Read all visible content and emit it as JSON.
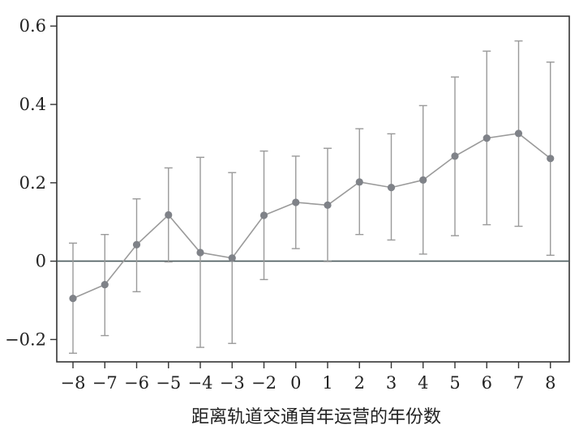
{
  "chart_data": {
    "type": "line",
    "title": "",
    "xlabel": "距离轨道交通首年运营的年份数",
    "ylabel": "",
    "x": [
      -8,
      -7,
      -6,
      -5,
      -4,
      -3,
      -2,
      0,
      1,
      2,
      3,
      4,
      5,
      6,
      7,
      8
    ],
    "x_tick_labels": [
      "−8",
      "−7",
      "−6",
      "−5",
      "−4",
      "−3",
      "−2",
      "0",
      "1",
      "2",
      "3",
      "4",
      "5",
      "6",
      "7",
      "8"
    ],
    "y_ticks": [
      -0.2,
      0,
      0.2,
      0.4,
      0.6
    ],
    "y_tick_labels": [
      "−0.2",
      "0",
      "0.2",
      "0.4",
      "0.6"
    ],
    "ylim": [
      -0.26,
      0.63
    ],
    "series": [
      {
        "values": [
          -0.095,
          -0.06,
          0.042,
          0.118,
          0.022,
          0.008,
          0.117,
          0.15,
          0.143,
          0.202,
          0.188,
          0.207,
          0.268,
          0.314,
          0.326,
          0.262
        ],
        "lower": [
          -0.235,
          -0.19,
          -0.078,
          -0.002,
          -0.22,
          -0.21,
          -0.047,
          0.032,
          -0.001,
          0.068,
          0.054,
          0.018,
          0.065,
          0.093,
          0.089,
          0.015
        ],
        "upper": [
          0.046,
          0.068,
          0.159,
          0.238,
          0.265,
          0.226,
          0.281,
          0.268,
          0.288,
          0.338,
          0.325,
          0.397,
          0.47,
          0.536,
          0.562,
          0.508
        ]
      }
    ],
    "reference_line_y": 0,
    "grid": false,
    "legend": "none",
    "colors": {
      "line": "#9a9a9a",
      "marker": "#7f8288",
      "errorbar": "#9a9a9a",
      "reference": "#4a5a5c",
      "axis": "#333333"
    }
  }
}
